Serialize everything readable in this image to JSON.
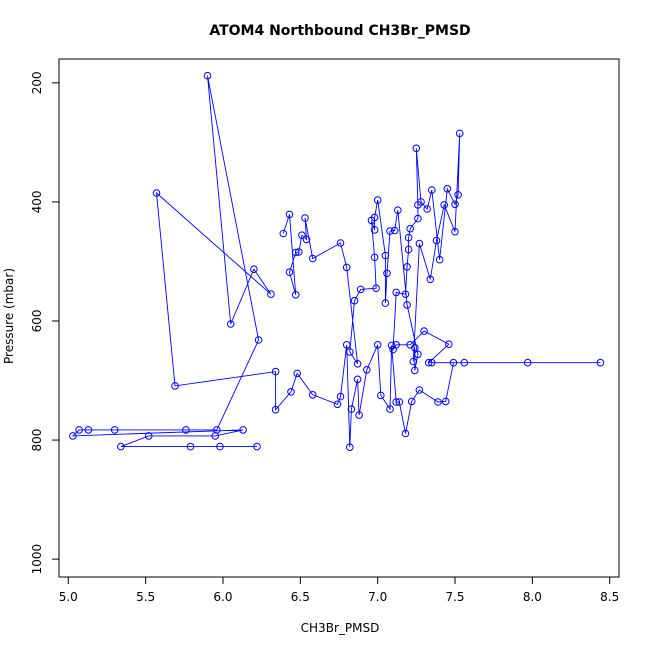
{
  "chart_data": {
    "type": "scatter",
    "title": "ATOM4 Northbound CH3Br_PMSD",
    "xlabel": "CH3Br_PMSD",
    "ylabel": "Pressure (mbar)",
    "xlim": [
      4.94,
      8.56
    ],
    "ylim": [
      1030,
      160
    ],
    "y_reversed": true,
    "x_ticks": [
      5.0,
      5.5,
      6.0,
      6.5,
      7.0,
      7.5,
      8.0,
      8.5
    ],
    "x_tick_labels": [
      "5.0",
      "5.5",
      "6.0",
      "6.5",
      "7.0",
      "7.5",
      "8.0",
      "8.5"
    ],
    "y_ticks": [
      200,
      400,
      600,
      800,
      1000
    ],
    "y_tick_labels": [
      "200",
      "400",
      "600",
      "800",
      "1000"
    ],
    "grid": false,
    "legend": "none",
    "color": "#0000ff",
    "series": [
      {
        "points": [
          [
            6.22,
            811
          ],
          [
            5.98,
            811
          ],
          [
            5.79,
            811
          ],
          [
            5.34,
            811
          ],
          [
            5.52,
            793
          ],
          [
            5.95,
            793
          ],
          [
            6.13,
            783
          ],
          [
            5.03,
            793
          ],
          [
            5.07,
            783
          ],
          [
            5.13,
            783
          ],
          [
            5.3,
            783
          ],
          [
            5.76,
            783
          ],
          [
            5.96,
            783
          ],
          [
            6.23,
            632
          ],
          [
            5.9,
            188
          ],
          [
            6.05,
            605
          ],
          [
            6.2,
            513
          ],
          [
            6.31,
            555
          ],
          [
            5.57,
            385
          ],
          [
            5.69,
            709
          ],
          [
            6.34,
            685
          ],
          [
            6.34,
            749
          ],
          [
            6.44,
            719
          ],
          [
            6.48,
            688
          ],
          [
            6.58,
            724
          ],
          [
            6.74,
            740
          ],
          [
            6.76,
            727
          ],
          [
            6.8,
            640
          ],
          [
            6.82,
            812
          ],
          [
            6.83,
            748
          ],
          [
            6.87,
            698
          ],
          [
            6.88,
            758
          ],
          [
            6.93,
            682
          ],
          [
            7.0,
            640
          ],
          [
            7.02,
            725
          ],
          [
            7.08,
            748
          ],
          [
            7.09,
            641
          ],
          [
            7.12,
            736
          ],
          [
            7.14,
            736
          ],
          [
            7.18,
            789
          ],
          [
            7.22,
            735
          ],
          [
            7.27,
            716
          ],
          [
            7.39,
            736
          ],
          [
            7.44,
            735
          ],
          [
            7.49,
            670
          ],
          [
            7.56,
            670
          ],
          [
            7.97,
            670
          ],
          [
            8.44,
            670
          ],
          [
            7.35,
            670
          ],
          [
            7.33,
            670
          ],
          [
            7.46,
            639
          ],
          [
            7.3,
            617
          ],
          [
            7.21,
            640
          ],
          [
            7.12,
            640
          ],
          [
            7.1,
            648
          ],
          [
            7.12,
            552
          ],
          [
            7.18,
            555
          ],
          [
            7.19,
            509
          ],
          [
            7.2,
            480
          ],
          [
            7.2,
            460
          ],
          [
            7.21,
            445
          ],
          [
            7.26,
            428
          ],
          [
            7.26,
            405
          ],
          [
            7.25,
            310
          ],
          [
            7.28,
            400
          ],
          [
            7.32,
            412
          ],
          [
            7.35,
            380
          ],
          [
            7.4,
            497
          ],
          [
            7.45,
            378
          ],
          [
            7.5,
            404
          ],
          [
            7.52,
            388
          ],
          [
            7.53,
            285
          ],
          [
            7.5,
            450
          ],
          [
            7.43,
            405
          ],
          [
            7.38,
            465
          ],
          [
            7.34,
            530
          ],
          [
            7.27,
            470
          ],
          [
            7.23,
            668
          ],
          [
            7.24,
            645
          ],
          [
            7.24,
            683
          ],
          [
            7.26,
            656
          ],
          [
            7.19,
            573
          ],
          [
            7.13,
            414
          ],
          [
            7.11,
            448
          ],
          [
            7.08,
            449
          ],
          [
            7.06,
            520
          ],
          [
            7.05,
            570
          ],
          [
            7.05,
            490
          ],
          [
            7.0,
            397
          ],
          [
            6.98,
            426
          ],
          [
            6.98,
            447
          ],
          [
            6.96,
            431
          ],
          [
            6.98,
            493
          ],
          [
            6.99,
            545
          ],
          [
            6.89,
            547
          ],
          [
            6.85,
            566
          ],
          [
            6.82,
            652
          ],
          [
            6.87,
            672
          ],
          [
            6.8,
            510
          ],
          [
            6.76,
            469
          ],
          [
            6.58,
            495
          ],
          [
            6.53,
            427
          ],
          [
            6.54,
            463
          ],
          [
            6.51,
            456
          ],
          [
            6.49,
            484
          ],
          [
            6.47,
            485
          ],
          [
            6.43,
            518
          ],
          [
            6.47,
            556
          ],
          [
            6.43,
            421
          ],
          [
            6.39,
            453
          ]
        ]
      }
    ]
  }
}
